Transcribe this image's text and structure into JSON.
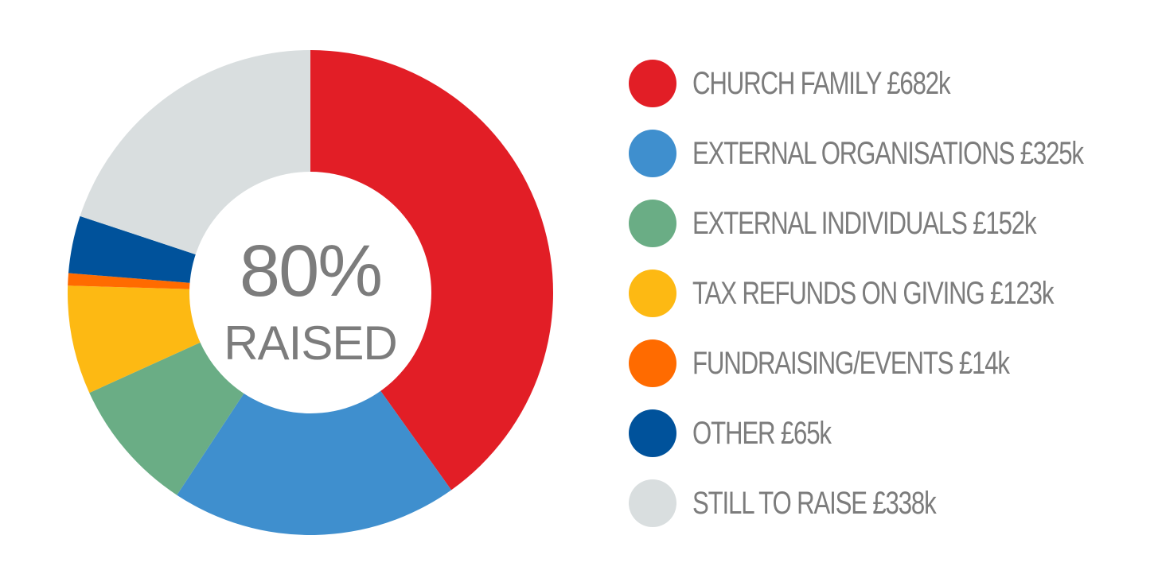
{
  "chart_data": {
    "type": "pie",
    "center_text": {
      "value": "80%",
      "label": "RAISED"
    },
    "legend_placement": "right",
    "series": [
      {
        "name": "CHURCH FAMILY £682k",
        "value": 682,
        "color": "#e21e26"
      },
      {
        "name": "EXTERNAL ORGANISATIONS £325k",
        "value": 325,
        "color": "#3f8fce"
      },
      {
        "name": "EXTERNAL INDIVIDUALS £152k",
        "value": 152,
        "color": "#6aad85"
      },
      {
        "name": "TAX REFUNDS ON GIVING £123k",
        "value": 123,
        "color": "#fdb913"
      },
      {
        "name": "FUNDRAISING/EVENTS £14k",
        "value": 14,
        "color": "#ff6b00"
      },
      {
        "name": "OTHER £65k",
        "value": 65,
        "color": "#00529b"
      },
      {
        "name": "STILL TO RAISE £338k",
        "value": 338,
        "color": "#d9dedf"
      }
    ]
  }
}
